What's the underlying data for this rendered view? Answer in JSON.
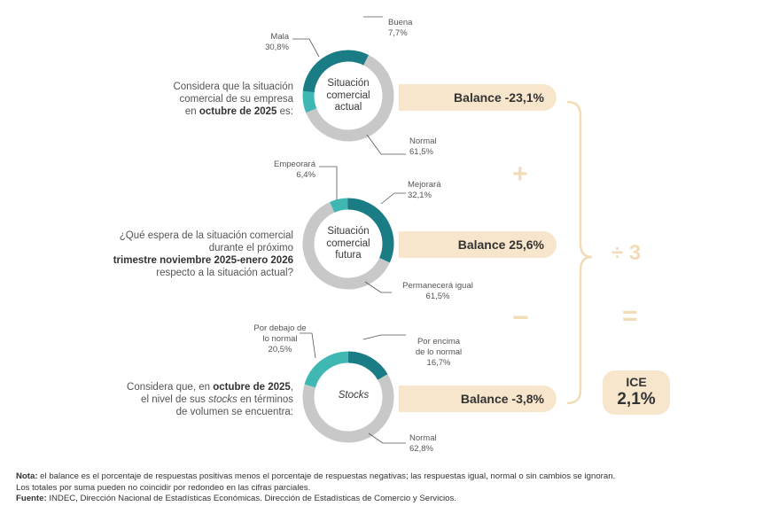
{
  "charts": [
    {
      "question_lines": [
        {
          "text": "Considera que la situación",
          "bold": false
        },
        {
          "text": "comercial de su empresa",
          "bold": false
        },
        {
          "pre": "en ",
          "bold_text": "octubre de 2025",
          "post": " es:"
        }
      ],
      "center_lines": [
        "Situación",
        "comercial",
        "actual"
      ],
      "center_italic": false,
      "balance": "Balance  -23,1%",
      "labels": [
        {
          "name": "Mala",
          "value": "30,8%"
        },
        {
          "name": "Buena",
          "value": "7,7%"
        },
        {
          "name": "Normal",
          "value": "61,5%"
        }
      ]
    },
    {
      "question_lines": [
        {
          "text": "¿Qué espera de la situación comercial",
          "bold": false
        },
        {
          "text": "durante el próximo",
          "bold": false
        },
        {
          "text": "trimestre noviembre 2025-enero 2026",
          "bold": true
        },
        {
          "text": "respecto a la situación actual?",
          "bold": false
        }
      ],
      "center_lines": [
        "Situación",
        "comercial",
        "futura"
      ],
      "center_italic": false,
      "balance": "Balance  25,6%",
      "labels": [
        {
          "name": "Empeorará",
          "value": "6,4%"
        },
        {
          "name": "Mejorará",
          "value": "32,1%"
        },
        {
          "name": "Permanecerá igual",
          "value": "61,5%"
        }
      ]
    },
    {
      "question_lines": [
        {
          "pre": "Considera que, en ",
          "bold_text": "octubre de 2025",
          "post": ","
        },
        {
          "pre": "el nivel de sus ",
          "italic_text": "stocks",
          "post": " en términos"
        },
        {
          "text": "de volumen se encuentra:",
          "bold": false
        }
      ],
      "center_lines": [
        "Stocks"
      ],
      "center_italic": true,
      "balance": "Balance  -3,8%",
      "labels": [
        {
          "name": "Por debajo de\nlo normal",
          "value": "20,5%"
        },
        {
          "name": "Por encima\nde lo normal",
          "value": "16,7%"
        },
        {
          "name": "Normal",
          "value": "62,8%"
        }
      ]
    }
  ],
  "operators": {
    "plus": "+",
    "minus": "−",
    "divide": "÷ 3",
    "equals": "="
  },
  "ice": {
    "label": "ICE",
    "value": "2,1%"
  },
  "notes": {
    "nota_label": "Nota:",
    "nota_text": " el balance es el porcentaje de respuestas positivas menos el porcentaje de respuestas negativas; las respuestas igual, normal o sin cambios se ignoran.",
    "line2": "Los totales por suma pueden no coincidir por redondeo en las cifras parciales.",
    "fuente_label": "Fuente:",
    "fuente_text": " INDEC, Dirección Nacional de Estadísticas Económicas. Dirección de Estadísticas de Comercio y Servicios."
  },
  "colors": {
    "light_teal": "#3fb8b3",
    "dark_teal": "#1a7c84",
    "gray": "#c8c8c8",
    "beige": "#f7e6cc",
    "operator": "#f2dcb8"
  },
  "chart_data": [
    {
      "type": "pie",
      "title": "Situación comercial actual",
      "categories": [
        "Buena",
        "Mala",
        "Normal"
      ],
      "values": [
        7.7,
        30.8,
        61.5
      ],
      "balance": -23.1
    },
    {
      "type": "pie",
      "title": "Situación comercial futura",
      "categories": [
        "Mejorará",
        "Empeorará",
        "Permanecerá igual"
      ],
      "values": [
        32.1,
        6.4,
        61.5
      ],
      "balance": 25.6
    },
    {
      "type": "pie",
      "title": "Stocks",
      "categories": [
        "Por encima de lo normal",
        "Por debajo de lo normal",
        "Normal"
      ],
      "values": [
        16.7,
        20.5,
        62.8
      ],
      "balance": -3.8
    }
  ]
}
